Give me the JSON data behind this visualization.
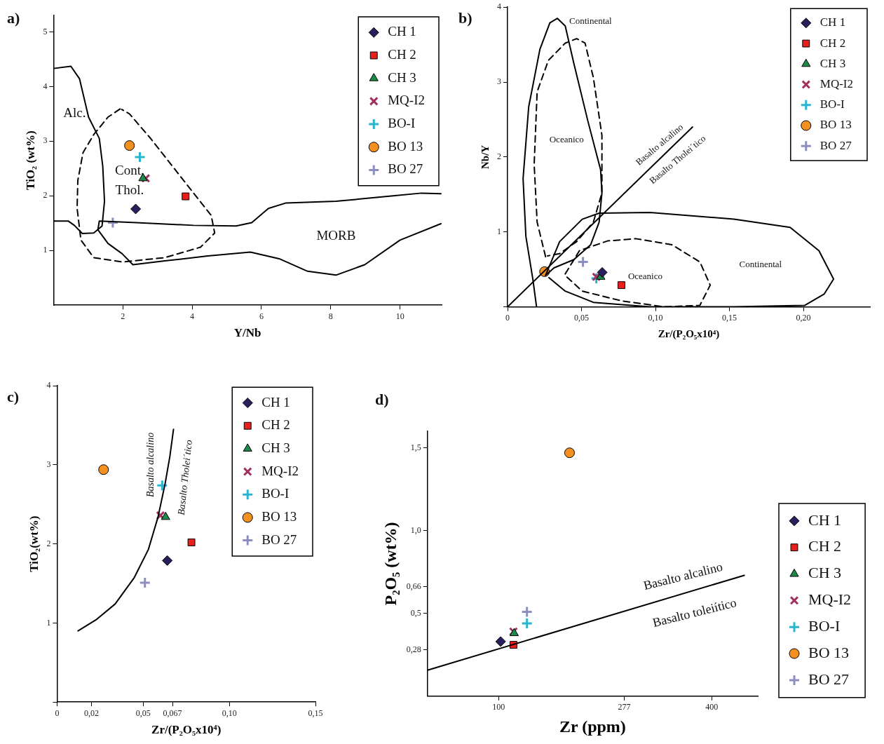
{
  "chart_data": [
    {
      "type": "scatter",
      "title": "a)",
      "xlabel": "Y/Nb",
      "ylabel": "TiO₂ (wt%)",
      "xlim": [
        0,
        11.2
      ],
      "ylim": [
        0,
        5.3
      ],
      "xticks": [
        2,
        4,
        6,
        8,
        10
      ],
      "yticks": [
        1,
        2,
        3,
        4,
        5
      ],
      "grid": false,
      "legend": "top right",
      "annotations": [
        "Alc.",
        "Cont.",
        "Thol.",
        "MORB"
      ],
      "series": [
        {
          "type": "line",
          "color": "#000000",
          "line_style": "solid",
          "x": [
            0,
            0.5,
            0.75,
            1.01,
            1.32,
            1.42,
            1.47,
            1.4,
            1.16,
            0.83,
            0.6,
            0.42,
            0
          ],
          "values": [
            4.33,
            4.37,
            4.14,
            3.44,
            3.05,
            2.54,
            1.9,
            1.45,
            1.32,
            1.31,
            1.46,
            1.54,
            1.54
          ]
        },
        {
          "type": "line",
          "color": "#000000",
          "line_style": "solid",
          "x": [
            11.18,
            10.62,
            9.8,
            8.15,
            6.71,
            6.2,
            5.72,
            5.27,
            4.04,
            2.39,
            1.32,
            1.28,
            1.57,
            1.98,
            2.29,
            3.21,
            4.45,
            5.68,
            6.51,
            7.33,
            8.15,
            8.98,
            10,
            11.18
          ],
          "values": [
            2.04,
            2.05,
            2,
            1.9,
            1.87,
            1.77,
            1.51,
            1.45,
            1.46,
            1.51,
            1.54,
            1.38,
            1.13,
            0.94,
            0.74,
            0.81,
            0.9,
            0.97,
            0.85,
            0.62,
            0.55,
            0.74,
            1.19,
            1.49
          ]
        },
        {
          "type": "line",
          "color": "#000000",
          "line_style": "dashed",
          "x": [
            1.92,
            1.57,
            1.16,
            0.85,
            0.7,
            0.68,
            0.79,
            1.16,
            1.98,
            3.21,
            4.24,
            4.65,
            4.55,
            3.83,
            2.8,
            2.19,
            1.97
          ],
          "values": [
            3.59,
            3.44,
            3.12,
            2.79,
            2.28,
            1.77,
            1.19,
            0.87,
            0.79,
            0.87,
            1.06,
            1.32,
            1.64,
            2.22,
            3.05,
            3.5,
            3.58
          ]
        },
        {
          "name": "CH 1",
          "color": "#2a1f5c",
          "marker": "diamond",
          "x": [
            2.37
          ],
          "values": [
            1.76
          ]
        },
        {
          "name": "CH 2",
          "color": "#e8201c",
          "marker": "square",
          "x": [
            3.81
          ],
          "values": [
            1.99
          ]
        },
        {
          "name": "CH 3",
          "color": "#1e8a4a",
          "marker": "triangle",
          "x": [
            2.58
          ],
          "values": [
            2.32
          ]
        },
        {
          "name": "MQ-I2",
          "color": "#a03060",
          "marker": "x",
          "x": [
            2.66
          ],
          "values": [
            2.32
          ]
        },
        {
          "name": "BO-I",
          "color": "#29b5d0",
          "marker": "cross",
          "x": [
            2.49
          ],
          "values": [
            2.71
          ]
        },
        {
          "name": "BO 13",
          "color": "#f39020",
          "marker": "circle",
          "x": [
            2.19
          ],
          "values": [
            2.92
          ]
        },
        {
          "name": "BO 27",
          "color": "#8a8fc0",
          "marker": "cross",
          "x": [
            1.71
          ],
          "values": [
            1.51
          ]
        }
      ]
    },
    {
      "type": "scatter",
      "title": "b)",
      "xlabel": "Zr/(P₂O₅x10⁴)",
      "ylabel": "Nb/Y",
      "xlim": [
        0,
        0.245
      ],
      "ylim": [
        0,
        4
      ],
      "xticks": [
        0,
        {
          "value": 0.05,
          "label": "0,05"
        },
        {
          "value": 0.1,
          "label": "0,10"
        },
        {
          "value": 0.15,
          "label": "0,15"
        },
        {
          "value": 0.2,
          "label": "0,20"
        }
      ],
      "yticks": [
        {
          "value": 0,
          "label": null
        },
        1,
        2,
        3,
        4
      ],
      "grid": false,
      "legend": "top right",
      "annotations": [
        "Continental",
        "Oceanico",
        "Oceanico",
        "Continental",
        "Basalto alcalino",
        "Basalto Tholei´tico"
      ],
      "series": [
        {
          "type": "line",
          "color": "#000000",
          "line_style": "solid",
          "x": [
            0,
            0.125
          ],
          "values": [
            0,
            2.4
          ]
        },
        {
          "type": "line",
          "color": "#000000",
          "line_style": "solid",
          "x": [
            0.0196,
            0.0171,
            0.0124,
            0.0105,
            0.0143,
            0.0219,
            0.0286,
            0.0337,
            0.039,
            0.0448,
            0.0543,
            0.0629,
            0.0638,
            0.0619,
            0.0562,
            0.0448,
            0.0314,
            0.0257
          ],
          "values": [
            0,
            0.37,
            0.94,
            1.71,
            2.67,
            3.44,
            3.79,
            3.85,
            3.75,
            3.25,
            2.48,
            1.83,
            1.52,
            1.13,
            0.83,
            0.63,
            0.52,
            0.42
          ]
        },
        {
          "type": "line",
          "color": "#000000",
          "line_style": "solid",
          "x": [
            0.0257,
            0.0352,
            0.0505,
            0.0619,
            0.0962,
            0.153,
            0.191,
            0.2105,
            0.2204,
            0.214,
            0.201,
            0.153,
            0.127,
            0.096,
            0.058,
            0.039,
            0.028
          ],
          "values": [
            0.42,
            0.87,
            1.17,
            1.25,
            1.26,
            1.17,
            1.06,
            0.75,
            0.37,
            0.17,
            0.02,
            0,
            0,
            0,
            0.06,
            0.21,
            0.39
          ]
        },
        {
          "type": "line",
          "color": "#000000",
          "line_style": "dashed",
          "x": [
            0.0257,
            0.02,
            0.018,
            0.02,
            0.0276,
            0.039,
            0.0467,
            0.0524,
            0.058,
            0.0638,
            0.0638,
            0.058,
            0.0467,
            0.0352,
            0.027
          ],
          "values": [
            0.67,
            1.13,
            1.9,
            2.87,
            3.29,
            3.52,
            3.58,
            3.52,
            3.06,
            2.29,
            1.52,
            1.13,
            0.87,
            0.71,
            0.68
          ]
        },
        {
          "type": "line",
          "color": "#000000",
          "line_style": "dashed",
          "x": [
            0.039,
            0.0486,
            0.0676,
            0.0867,
            0.111,
            0.13,
            0.137,
            0.13,
            0.106,
            0.077,
            0.0505,
            0.04
          ],
          "values": [
            0.44,
            0.75,
            0.88,
            0.91,
            0.83,
            0.6,
            0.29,
            0.02,
            0,
            0.08,
            0.21,
            0.4
          ]
        },
        {
          "name": "CH 1",
          "color": "#2a1f5c",
          "marker": "diamond",
          "x": [
            0.064
          ],
          "values": [
            0.46
          ]
        },
        {
          "name": "CH 2",
          "color": "#e8201c",
          "marker": "square",
          "x": [
            0.077
          ],
          "values": [
            0.29
          ]
        },
        {
          "name": "CH 3",
          "color": "#1e8a4a",
          "marker": "triangle",
          "x": [
            0.063
          ],
          "values": [
            0.4
          ]
        },
        {
          "name": "MQ-I2",
          "color": "#a03060",
          "marker": "x",
          "x": [
            0.06
          ],
          "values": [
            0.4
          ]
        },
        {
          "name": "BO-I",
          "color": "#29b5d0",
          "marker": "cross",
          "x": [
            0.06
          ],
          "values": [
            0.38
          ]
        },
        {
          "name": "BO 13",
          "color": "#f39020",
          "marker": "circle",
          "x": [
            0.025
          ],
          "values": [
            0.47
          ]
        },
        {
          "name": "BO 27",
          "color": "#8a8fc0",
          "marker": "cross",
          "x": [
            0.051
          ],
          "values": [
            0.6
          ]
        }
      ]
    },
    {
      "type": "scatter",
      "title": "c)",
      "xlabel": "Zr/(P₂O₅x10⁴)",
      "ylabel": "TiO₂(wt%)",
      "xlim": [
        0,
        0.15
      ],
      "ylim": [
        0,
        4
      ],
      "xticks": [
        0,
        {
          "value": 0.02,
          "label": "0,02"
        },
        {
          "value": 0.05,
          "label": "0,05"
        },
        {
          "value": 0.067,
          "label": "0,067"
        },
        {
          "value": 0.1,
          "label": "0,10"
        },
        {
          "value": 0.15,
          "label": "0,15"
        }
      ],
      "yticks": [
        {
          "value": 0,
          "label": null
        },
        1,
        2,
        3,
        4
      ],
      "grid": false,
      "legend": "top right",
      "annotations": [
        "Basalto alcalino",
        "Basalto Tholei´tico"
      ],
      "series": [
        {
          "type": "line",
          "color": "#000000",
          "line_style": "solid",
          "x": [
            0.0122,
            0.0226,
            0.0337,
            0.0447,
            0.053,
            0.0586,
            0.0627,
            0.0655,
            0.0676
          ],
          "values": [
            0.9,
            1.04,
            1.24,
            1.57,
            1.93,
            2.34,
            2.76,
            3.11,
            3.45
          ]
        },
        {
          "name": "CH 1",
          "color": "#2a1f5c",
          "marker": "diamond",
          "x": [
            0.064
          ],
          "values": [
            1.79
          ]
        },
        {
          "name": "CH 2",
          "color": "#e8201c",
          "marker": "square",
          "x": [
            0.078
          ],
          "values": [
            2.02
          ]
        },
        {
          "name": "CH 3",
          "color": "#1e8a4a",
          "marker": "triangle",
          "x": [
            0.063
          ],
          "values": [
            2.34
          ]
        },
        {
          "name": "MQ-I2",
          "color": "#a03060",
          "marker": "x",
          "x": [
            0.06
          ],
          "values": [
            2.36
          ]
        },
        {
          "name": "BO-I",
          "color": "#29b5d0",
          "marker": "cross",
          "x": [
            0.061
          ],
          "values": [
            2.74
          ]
        },
        {
          "name": "BO 13",
          "color": "#f39020",
          "marker": "circle",
          "x": [
            0.027
          ],
          "values": [
            2.94
          ]
        },
        {
          "name": "BO 27",
          "color": "#8a8fc0",
          "marker": "cross",
          "x": [
            0.051
          ],
          "values": [
            1.51
          ]
        }
      ]
    },
    {
      "type": "scatter",
      "title": "d)",
      "xlabel": "Zr (ppm)",
      "ylabel": "P₂O₅ (wt%)",
      "xlim": [
        0,
        465
      ],
      "ylim": [
        0,
        1.6
      ],
      "xticks": [
        100,
        277,
        400
      ],
      "yticks": [
        {
          "value": 0.28,
          "label": "0,28"
        },
        {
          "value": 0.5,
          "label": "0,5"
        },
        {
          "value": 0.66,
          "label": "0,66"
        },
        {
          "value": 1.0,
          "label": "1,0"
        },
        {
          "value": 1.5,
          "label": "1,5"
        }
      ],
      "grid": false,
      "legend": "right",
      "annotations": [
        "Basalto alcalino",
        "Basalto toleiítico"
      ],
      "series": [
        {
          "type": "line",
          "color": "#000000",
          "line_style": "solid",
          "x": [
            0,
            446
          ],
          "values": [
            0.157,
            0.73
          ]
        },
        {
          "name": "CH 1",
          "color": "#2a1f5c",
          "marker": "diamond",
          "x": [
            103
          ],
          "values": [
            0.33
          ]
        },
        {
          "name": "CH 2",
          "color": "#e8201c",
          "marker": "square",
          "x": [
            121
          ],
          "values": [
            0.31
          ]
        },
        {
          "name": "CH 3",
          "color": "#1e8a4a",
          "marker": "triangle",
          "x": [
            122
          ],
          "values": [
            0.38
          ]
        },
        {
          "name": "MQ-I2",
          "color": "#a03060",
          "marker": "x",
          "x": [
            121
          ],
          "values": [
            0.39
          ]
        },
        {
          "name": "BO-I",
          "color": "#29b5d0",
          "marker": "cross",
          "x": [
            140
          ],
          "values": [
            0.44
          ]
        },
        {
          "name": "BO 13",
          "color": "#f39020",
          "marker": "circle",
          "x": [
            200
          ],
          "values": [
            1.47
          ]
        },
        {
          "name": "BO 27",
          "color": "#8a8fc0",
          "marker": "cross",
          "x": [
            140
          ],
          "values": [
            0.51
          ]
        }
      ]
    }
  ]
}
